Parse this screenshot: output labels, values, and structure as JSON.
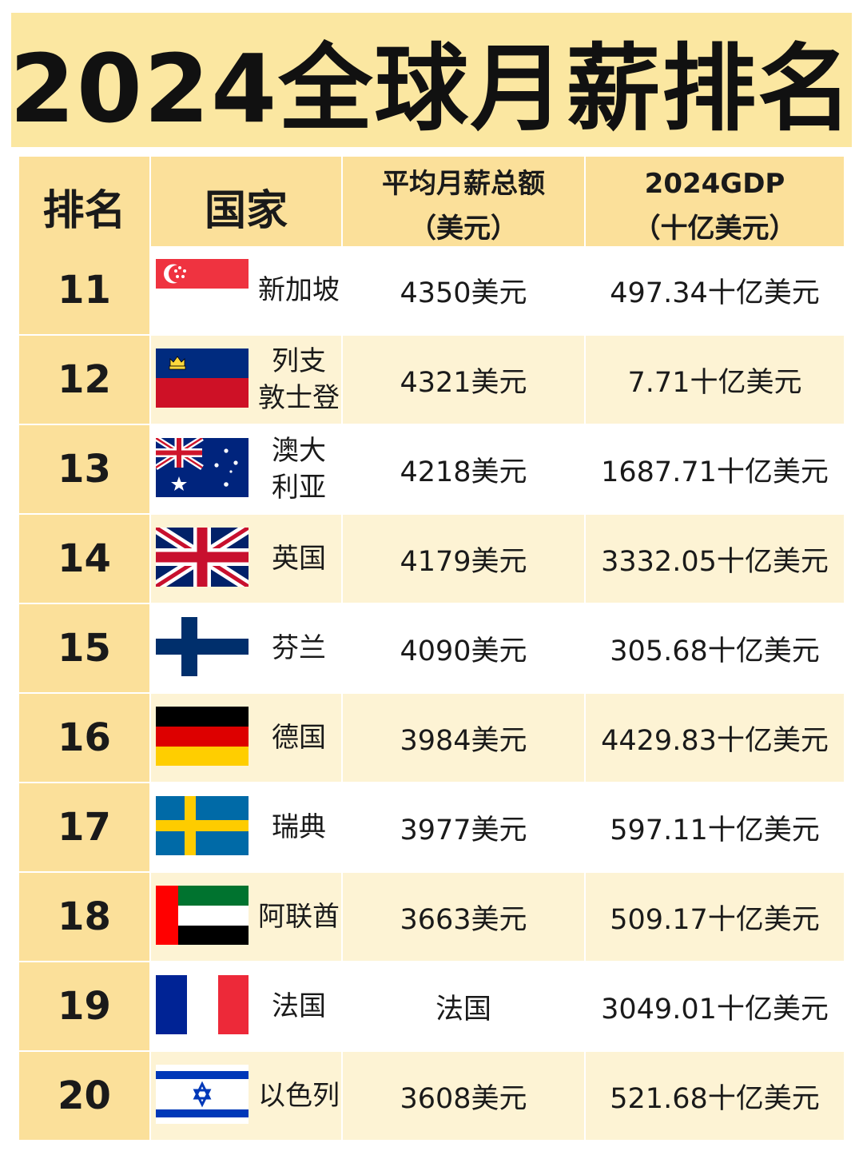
{
  "title": "2024全球月薪排名",
  "headers": {
    "rank": "排名",
    "country": "国家",
    "salary_line1": "平均月薪总额",
    "salary_line2": "（美元）",
    "gdp_line1": "2024GDP",
    "gdp_line2": "（十亿美元）"
  },
  "rows": [
    {
      "rank": "11",
      "country": "新加坡",
      "salary": "4350美元",
      "gdp": "497.34十亿美元",
      "flag": "singapore-flag-icon"
    },
    {
      "rank": "12",
      "country": "列支\n敦士登",
      "salary": "4321美元",
      "gdp": "7.71十亿美元",
      "flag": "liechtenstein-flag-icon"
    },
    {
      "rank": "13",
      "country": "澳大\n利亚",
      "salary": "4218美元",
      "gdp": "1687.71十亿美元",
      "flag": "australia-flag-icon"
    },
    {
      "rank": "14",
      "country": "英国",
      "salary": "4179美元",
      "gdp": "3332.05十亿美元",
      "flag": "uk-flag-icon"
    },
    {
      "rank": "15",
      "country": "芬兰",
      "salary": "4090美元",
      "gdp": "305.68十亿美元",
      "flag": "finland-flag-icon"
    },
    {
      "rank": "16",
      "country": "德国",
      "salary": "3984美元",
      "gdp": "4429.83十亿美元",
      "flag": "germany-flag-icon"
    },
    {
      "rank": "17",
      "country": "瑞典",
      "salary": "3977美元",
      "gdp": "597.11十亿美元",
      "flag": "sweden-flag-icon"
    },
    {
      "rank": "18",
      "country": "阿联酋",
      "salary": "3663美元",
      "gdp": "509.17十亿美元",
      "flag": "uae-flag-icon"
    },
    {
      "rank": "19",
      "country": "法国",
      "salary": "法国",
      "gdp": "3049.01十亿美元",
      "flag": "france-flag-icon"
    },
    {
      "rank": "20",
      "country": "以色列",
      "salary": "3608美元",
      "gdp": "521.68十亿美元",
      "flag": "israel-flag-icon"
    }
  ],
  "colors": {
    "banner": "#fbe7a1",
    "header_cell": "#fbe09a",
    "cream_row": "#fdf3d4"
  }
}
